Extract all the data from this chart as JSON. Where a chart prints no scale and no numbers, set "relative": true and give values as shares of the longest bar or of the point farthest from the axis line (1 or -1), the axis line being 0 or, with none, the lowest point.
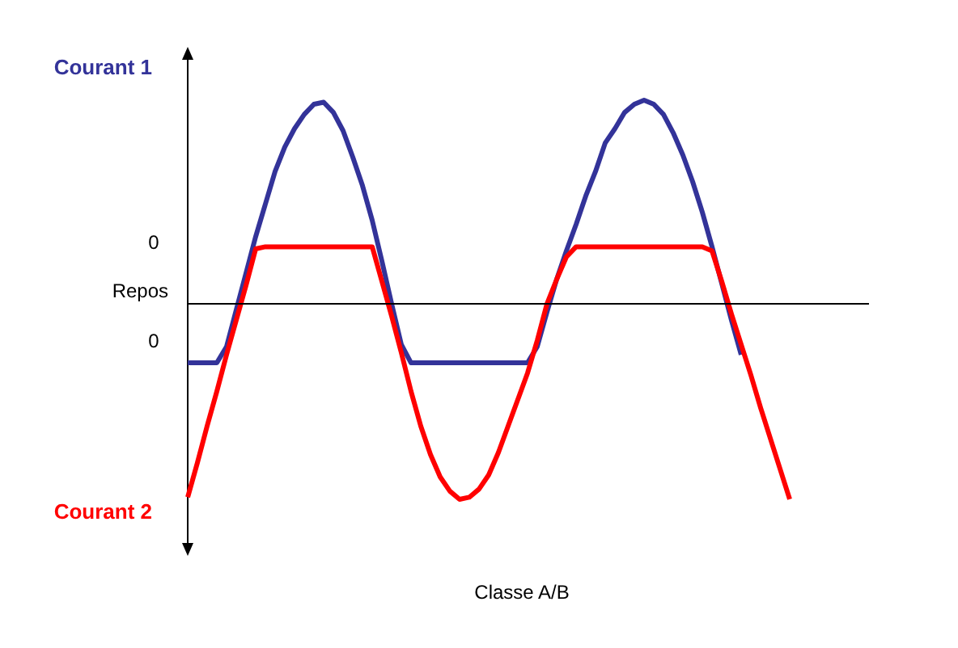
{
  "chart_data": {
    "type": "line",
    "xlabel": "Classe A/B",
    "relative": true,
    "categories": [
      null,
      null,
      null,
      null,
      null,
      null,
      null,
      null,
      null,
      null,
      null,
      null,
      null,
      null,
      null,
      null,
      null,
      null,
      null,
      null,
      null,
      null,
      null,
      null,
      null,
      null,
      null,
      null,
      null,
      null,
      null,
      null,
      null,
      null,
      null,
      null,
      null,
      null,
      null,
      null,
      null,
      null,
      null,
      null,
      null,
      null,
      null,
      null,
      null,
      null,
      null,
      null,
      null,
      null,
      null,
      null,
      null,
      null,
      null,
      null,
      null,
      null,
      null
    ],
    "series": [
      {
        "name": "Courant 1",
        "color": "#333399",
        "values": [
          -0.29,
          -0.29,
          -0.29,
          -0.29,
          -0.21,
          -0.03,
          0.15,
          0.33,
          0.49,
          0.65,
          0.77,
          0.86,
          0.93,
          0.98,
          0.99,
          0.94,
          0.85,
          0.72,
          0.58,
          0.41,
          0.21,
          0,
          -0.2,
          -0.29,
          -0.29,
          -0.29,
          -0.29,
          -0.29,
          -0.29,
          -0.29,
          -0.29,
          -0.29,
          -0.29,
          -0.29,
          -0.29,
          -0.29,
          -0.21,
          -0.04,
          0.12,
          0.26,
          0.39,
          0.53,
          0.65,
          0.79,
          0.86,
          0.94,
          0.98,
          1,
          0.98,
          0.93,
          0.84,
          0.73,
          0.6,
          0.45,
          0.28,
          0.1,
          -0.08,
          -0.25,
          null,
          null,
          null,
          null,
          null
        ]
      },
      {
        "name": "Courant 2",
        "color": "#ff0000",
        "values": [
          -0.95,
          -0.78,
          -0.6,
          -0.43,
          -0.25,
          -0.08,
          0.09,
          0.27,
          0.28,
          0.28,
          0.28,
          0.28,
          0.28,
          0.28,
          0.28,
          0.28,
          0.28,
          0.28,
          0.28,
          0.28,
          0.11,
          -0.06,
          -0.24,
          -0.43,
          -0.6,
          -0.74,
          -0.85,
          -0.92,
          -0.96,
          -0.95,
          -0.91,
          -0.84,
          -0.73,
          -0.6,
          -0.47,
          -0.34,
          -0.18,
          0,
          0.12,
          0.23,
          0.28,
          0.28,
          0.28,
          0.28,
          0.28,
          0.28,
          0.28,
          0.28,
          0.28,
          0.28,
          0.28,
          0.28,
          0.28,
          0.28,
          0.26,
          0.11,
          -0.05,
          -0.2,
          -0.35,
          -0.51,
          -0.66,
          -0.81,
          -0.96
        ]
      }
    ],
    "ref_lines": [
      {
        "axis": "y",
        "value": 0,
        "label": "Repos",
        "color": "#000000"
      }
    ],
    "annotations": [
      "0",
      "0"
    ]
  }
}
